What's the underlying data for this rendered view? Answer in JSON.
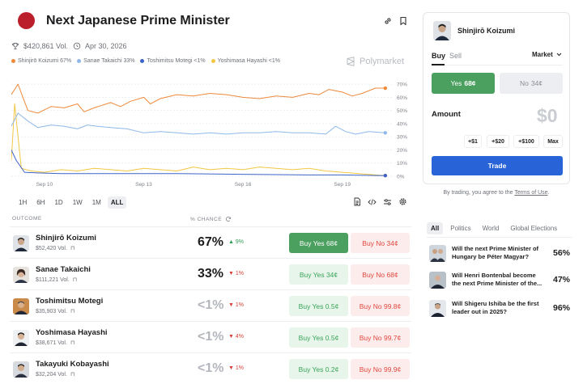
{
  "header": {
    "title": "Next Japanese Prime Minister",
    "volume": "$420,861 Vol.",
    "date": "Apr 30, 2026",
    "brand": "Polymarket"
  },
  "legend": [
    {
      "label": "Shinjirō Koizumi 67%",
      "color": "#ee8a3c"
    },
    {
      "label": "Sanae Takaichi 33%",
      "color": "#8fb8e8"
    },
    {
      "label": "Toshimitsu Motegi <1%",
      "color": "#3c64c8"
    },
    {
      "label": "Yoshimasa Hayashi <1%",
      "color": "#f2c744"
    }
  ],
  "chart_data": {
    "type": "line",
    "x_tick_labels": [
      "Sep 10",
      "Sep 13",
      "Sep 16",
      "Sep 19"
    ],
    "y_tick_labels": [
      "70%",
      "60%",
      "50%",
      "40%",
      "30%",
      "20%",
      "10%",
      "0%"
    ],
    "ylim": [
      0,
      75
    ],
    "x_range_days": [
      0,
      11.5
    ],
    "x_tick_days": [
      1,
      4,
      7,
      10
    ],
    "grid": true,
    "series": [
      {
        "name": "Shinjirō Koizumi",
        "color": "#ee8a3c",
        "x": [
          0,
          0.2,
          0.5,
          0.8,
          1.2,
          1.6,
          2,
          2.2,
          2.5,
          3,
          3.3,
          3.6,
          4,
          4.2,
          4.5,
          5,
          5.5,
          6,
          6.5,
          7,
          7.5,
          8,
          8.5,
          9,
          9.3,
          9.6,
          10,
          10.3,
          10.6,
          11,
          11.3
        ],
        "values": [
          62,
          70,
          50,
          48,
          53,
          52,
          55,
          49,
          52,
          56,
          53,
          57,
          60,
          55,
          59,
          62,
          61,
          63,
          62,
          60,
          59,
          61,
          60,
          63,
          62,
          66,
          64,
          61,
          63,
          67,
          67
        ]
      },
      {
        "name": "Sanae Takaichi",
        "color": "#8fb8e8",
        "x": [
          0,
          0.2,
          0.5,
          0.8,
          1.2,
          1.6,
          2,
          2.3,
          2.6,
          3,
          3.5,
          4,
          4.5,
          5,
          5.5,
          6,
          6.5,
          7,
          7.5,
          8,
          8.5,
          9,
          9.5,
          9.8,
          10.1,
          10.4,
          10.8,
          11.3
        ],
        "values": [
          38,
          48,
          42,
          37,
          39,
          38,
          36,
          39,
          38,
          37,
          36,
          33,
          34,
          33,
          32,
          33,
          32,
          33,
          33,
          34,
          33,
          33,
          32,
          38,
          34,
          32,
          34,
          33
        ]
      },
      {
        "name": "Toshimitsu Motegi",
        "color": "#3c64c8",
        "x": [
          0,
          0.15,
          0.4,
          0.8,
          1.5,
          3,
          5,
          7,
          9,
          10,
          11.3
        ],
        "values": [
          20,
          12,
          3,
          2.5,
          2,
          2,
          2,
          1.5,
          1,
          1,
          0.5
        ]
      },
      {
        "name": "Yoshimasa Hayashi",
        "color": "#f2c744",
        "x": [
          0,
          0.1,
          0.3,
          0.6,
          1,
          1.5,
          2,
          2.5,
          3,
          3.5,
          4,
          4.5,
          5,
          5.5,
          6,
          6.5,
          7,
          7.5,
          8,
          8.5,
          9,
          9.5,
          10,
          10.5,
          11,
          11.3
        ],
        "values": [
          12,
          55,
          6,
          4,
          3,
          5,
          4,
          6,
          5,
          4,
          6,
          5,
          4,
          7,
          5,
          6,
          5,
          7,
          6,
          5,
          6,
          4,
          3,
          2,
          1,
          0.5
        ]
      }
    ]
  },
  "ranges": [
    "1H",
    "6H",
    "1D",
    "1W",
    "1M",
    "ALL"
  ],
  "table": {
    "col_outcome": "OUTCOME",
    "col_chance": "% CHANCE",
    "rows": [
      {
        "name": "Shinjirō Koizumi",
        "vol": "$52,420 Vol.",
        "pct": "67%",
        "change": "▲ 9%",
        "dir": "up",
        "yes": "Buy Yes 68¢",
        "no": "Buy No 34¢"
      },
      {
        "name": "Sanae Takaichi",
        "vol": "$111,221 Vol.",
        "pct": "33%",
        "change": "▼ 1%",
        "dir": "down",
        "yes": "Buy Yes 34¢",
        "no": "Buy No 68¢"
      },
      {
        "name": "Toshimitsu Motegi",
        "vol": "$35,903 Vol.",
        "pct": "<1%",
        "change": "▼ 1%",
        "dir": "down",
        "yes": "Buy Yes 0.5¢",
        "no": "Buy No 99.8¢"
      },
      {
        "name": "Yoshimasa Hayashi",
        "vol": "$38,671 Vol.",
        "pct": "<1%",
        "change": "▼ 4%",
        "dir": "down",
        "yes": "Buy Yes 0.5¢",
        "no": "Buy No 99.7¢"
      },
      {
        "name": "Takayuki Kobayashi",
        "vol": "$32,204 Vol.",
        "pct": "<1%",
        "change": "▼ 1%",
        "dir": "down",
        "yes": "Buy Yes 0.2¢",
        "no": "Buy No 99.9¢"
      }
    ]
  },
  "trade_panel": {
    "candidate": "Shinjirō Koizumi",
    "tab_buy": "Buy",
    "tab_sell": "Sell",
    "order_type": "Market",
    "yes_label": "Yes",
    "yes_price": "68¢",
    "no_label": "No",
    "no_price": "34¢",
    "amount_label": "Amount",
    "amount_value": "$0",
    "quick": [
      "+$1",
      "+$20",
      "+$100",
      "Max"
    ],
    "trade_button": "Trade",
    "terms_prefix": "By trading, you agree to the",
    "terms_link": "Terms of Use",
    "terms_suffix": "."
  },
  "related": {
    "tabs": [
      "All",
      "Politics",
      "World",
      "Global Elections"
    ],
    "markets": [
      {
        "question": "Will the next Prime Minister of Hungary be Péter Magyar?",
        "pct": "56%"
      },
      {
        "question": "Will Henri Bontenbal become the next Prime Minister of the...",
        "pct": "47%"
      },
      {
        "question": "Will Shigeru Ishiba be the first leader out in 2025?",
        "pct": "96%"
      }
    ]
  }
}
